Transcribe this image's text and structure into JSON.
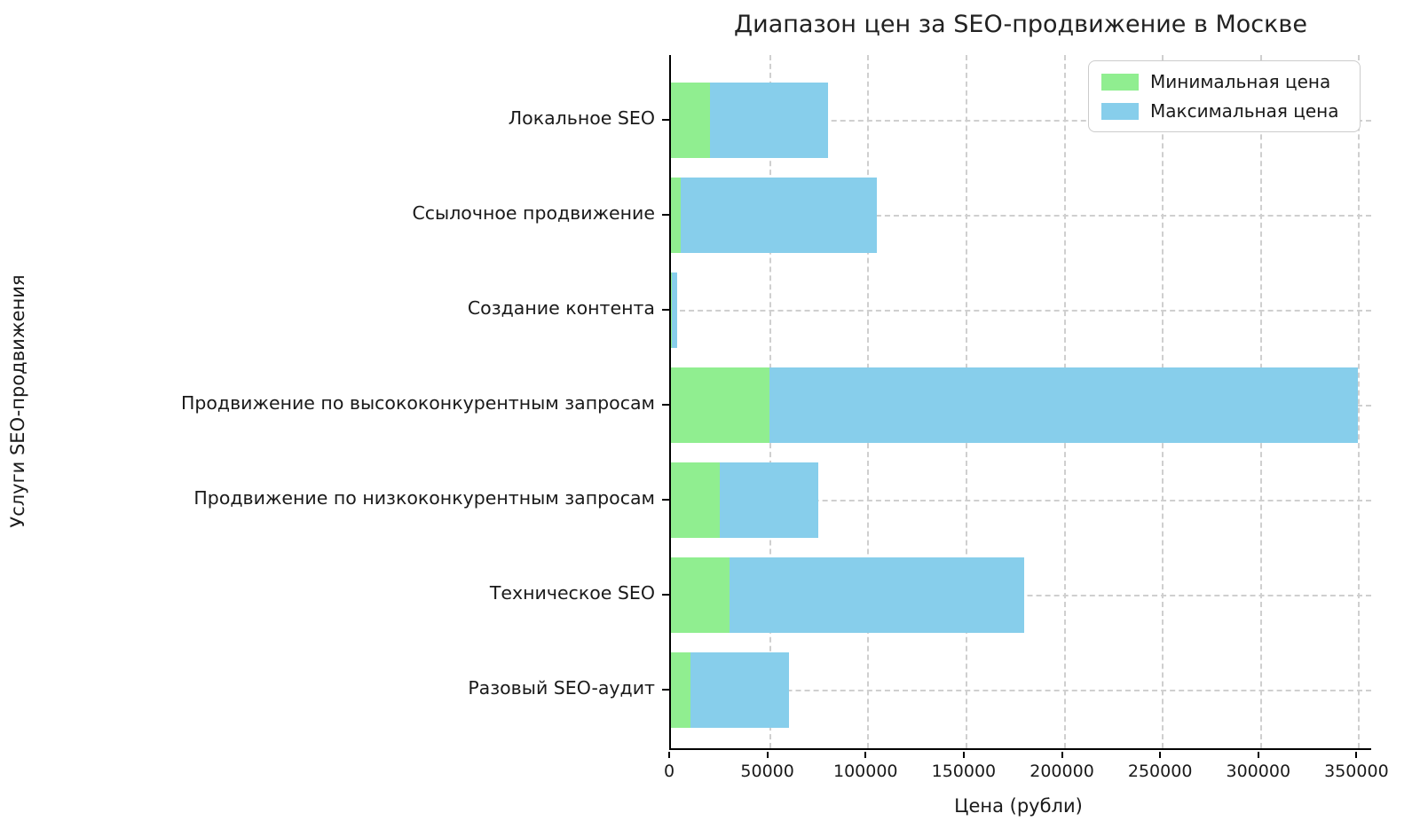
{
  "chart_data": {
    "type": "bar",
    "orientation": "horizontal",
    "bar_style": "stacked-range",
    "title": "Диапазон цен за SEO-продвижение в Москве",
    "xlabel": "Цена (рубли)",
    "ylabel": "Услуги SEO-продвижения",
    "categories": [
      "Локальное SEO",
      "Ссылочное продвижение",
      "Создание контента",
      "Продвижение по высококонкурентным запросам",
      "Продвижение по низкоконкурентным запросам",
      "Техническое SEO",
      "Разовый SEO-аудит"
    ],
    "series": [
      {
        "name": "Минимальная цена",
        "color": "#90EE90",
        "values": [
          20000,
          5000,
          500,
          50000,
          25000,
          30000,
          10000
        ]
      },
      {
        "name": "Максимальная цена",
        "color": "#87CEEB",
        "values": [
          80000,
          105000,
          3000,
          350000,
          75000,
          180000,
          60000
        ]
      }
    ],
    "x_ticks": [
      0,
      50000,
      100000,
      150000,
      200000,
      250000,
      300000,
      350000
    ],
    "x_tick_labels": [
      "0",
      "50000",
      "100000",
      "150000",
      "200000",
      "250000",
      "300000",
      "350000"
    ],
    "xlim": [
      0,
      357500
    ],
    "grid": "dashed",
    "legend_position": "upper right",
    "axis_color": "#000000",
    "grid_color": "#cfcfcf"
  }
}
